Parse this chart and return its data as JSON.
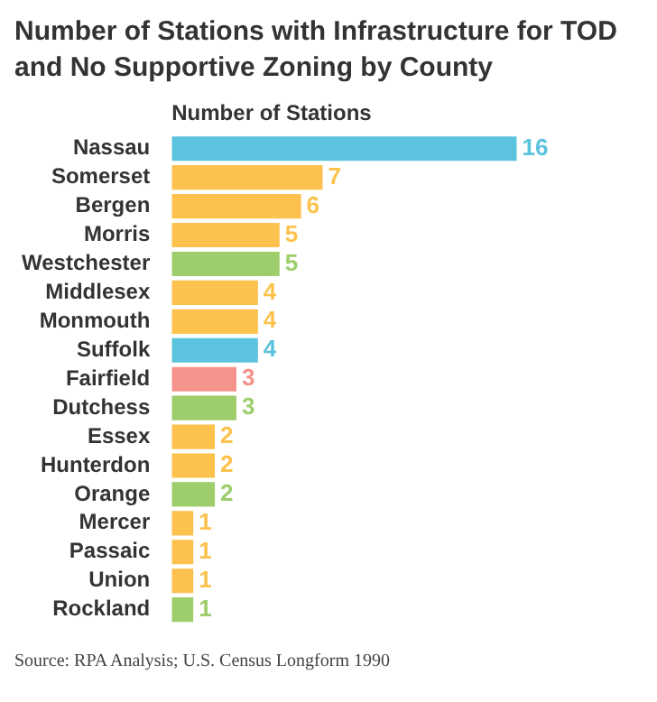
{
  "chart_data": {
    "type": "bar",
    "orientation": "horizontal",
    "title": "Number of Stations with Infrastructure for TOD and No Supportive Zoning by County",
    "xlabel": "Number of Stations",
    "categories": [
      "Nassau",
      "Somerset",
      "Bergen",
      "Morris",
      "Westchester",
      "Middlesex",
      "Monmouth",
      "Suffolk",
      "Fairfield",
      "Dutchess",
      "Essex",
      "Hunterdon",
      "Orange",
      "Mercer",
      "Passaic",
      "Union",
      "Rockland"
    ],
    "values": [
      16,
      7,
      6,
      5,
      5,
      4,
      4,
      4,
      3,
      3,
      2,
      2,
      2,
      1,
      1,
      1,
      1
    ],
    "colors": [
      "#5bc3dd",
      "#fcc24d",
      "#fcc24d",
      "#fcc24d",
      "#9dce6b",
      "#fcc24d",
      "#fcc24d",
      "#5bc3dd",
      "#f3938c",
      "#9dce6b",
      "#fcc24d",
      "#fcc24d",
      "#9dce6b",
      "#fcc24d",
      "#fcc24d",
      "#fcc24d",
      "#9dce6b"
    ],
    "data_labels": true,
    "grid": false,
    "legend": false,
    "annotations": [
      "Source: RPA Analysis; U.S. Census Longform 1990"
    ]
  }
}
